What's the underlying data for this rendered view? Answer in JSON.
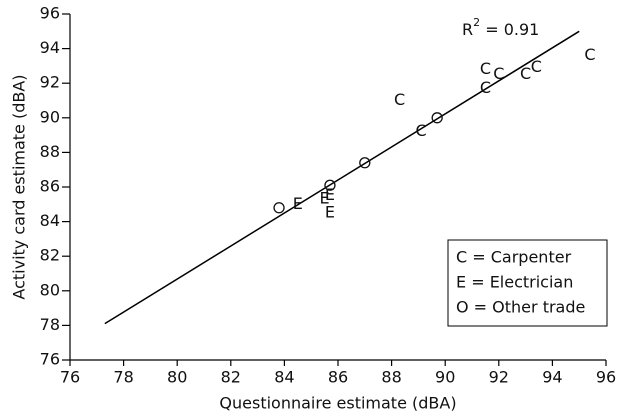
{
  "chart_data": {
    "type": "scatter",
    "x_label": "Questionnaire estimate (dBA)",
    "y_label": "Activity card estimate (dBA)",
    "xlim": [
      76,
      96
    ],
    "ylim": [
      76,
      96
    ],
    "xticks": [
      76,
      78,
      80,
      82,
      84,
      86,
      88,
      90,
      92,
      94,
      96
    ],
    "yticks": [
      76,
      78,
      80,
      82,
      84,
      86,
      88,
      90,
      92,
      94,
      96
    ],
    "annotation": {
      "base": "R",
      "sup": "2",
      "rest": " = 0.91"
    },
    "fit": {
      "x": [
        77.3,
        95.0
      ],
      "values": [
        78.1,
        95.0
      ],
      "color": "#000000"
    },
    "series": [
      {
        "name": "C = Carpenter",
        "marker": "C",
        "color": "#111111",
        "x": [
          88.3,
          95.4,
          91.5,
          92.0,
          91.5,
          93.0,
          93.4,
          89.1
        ],
        "values": [
          91.0,
          93.6,
          92.8,
          92.5,
          91.7,
          92.5,
          92.9,
          89.2
        ]
      },
      {
        "name": "E = Electrician",
        "marker": "E",
        "color": "#111111",
        "x": [
          84.5,
          85.7,
          85.5,
          85.7
        ],
        "values": [
          85.0,
          85.5,
          85.3,
          84.5
        ]
      },
      {
        "name": "O = Other trade",
        "marker": "O",
        "color": "#111111",
        "x": [
          83.8,
          85.7,
          87.0,
          89.7
        ],
        "values": [
          84.8,
          86.1,
          87.4,
          90.0
        ]
      }
    ]
  }
}
